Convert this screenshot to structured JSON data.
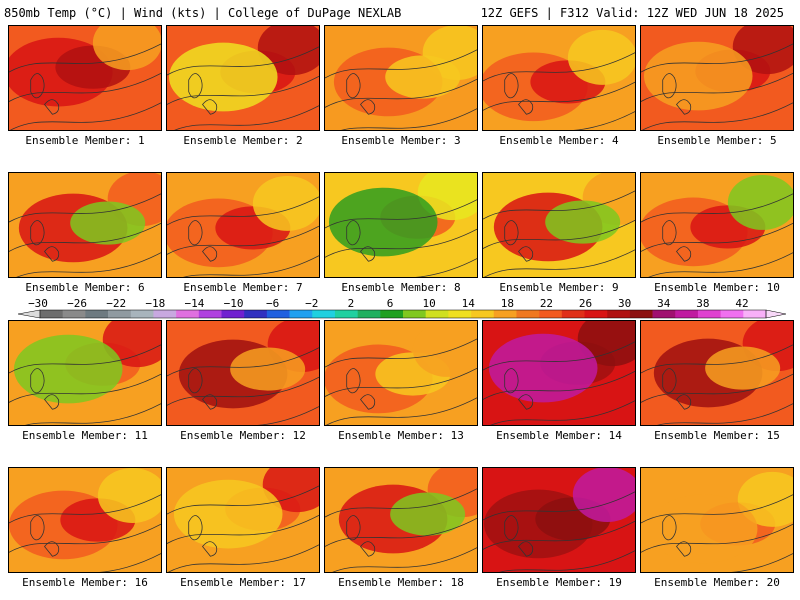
{
  "header": {
    "left": "850mb Temp (°C) | Wind (kts) | College of DuPage NEXLAB",
    "right": "12Z GEFS | F312 Valid: 12Z WED JUN 18 2025"
  },
  "members": [
    {
      "label": "Ensemble Member: 1",
      "base": "#f25a1f",
      "blobs": [
        {
          "c": "#d81414"
        },
        {
          "c": "#b01010"
        },
        {
          "c": "#f7a021"
        }
      ]
    },
    {
      "label": "Ensemble Member: 2",
      "base": "#f25a1f",
      "blobs": [
        {
          "c": "#d81414"
        },
        {
          "c": "#b01010"
        },
        {
          "c": "#f0e021"
        }
      ]
    },
    {
      "label": "Ensemble Member: 3",
      "base": "#f79a20",
      "blobs": [
        {
          "c": "#f7c820"
        },
        {
          "c": "#f25a1f"
        },
        {
          "c": "#f7c820"
        }
      ]
    },
    {
      "label": "Ensemble Member: 4",
      "base": "#f7a021",
      "blobs": [
        {
          "c": "#f25a1f"
        },
        {
          "c": "#d81414"
        },
        {
          "c": "#f7c820"
        }
      ]
    },
    {
      "label": "Ensemble Member: 5",
      "base": "#f25a1f",
      "blobs": [
        {
          "c": "#d81414"
        },
        {
          "c": "#b01010"
        },
        {
          "c": "#f7a021"
        }
      ]
    },
    {
      "label": "Ensemble Member: 6",
      "base": "#f7a021",
      "blobs": [
        {
          "c": "#f25a1f"
        },
        {
          "c": "#d81414"
        },
        {
          "c": "#7ec820"
        }
      ]
    },
    {
      "label": "Ensemble Member: 7",
      "base": "#f7a021",
      "blobs": [
        {
          "c": "#f25a1f"
        },
        {
          "c": "#d81414"
        },
        {
          "c": "#f7c820"
        }
      ]
    },
    {
      "label": "Ensemble Member: 8",
      "base": "#f7c820",
      "blobs": [
        {
          "c": "#f25a1f"
        },
        {
          "c": "#e8e820"
        },
        {
          "c": "#2f9e20"
        }
      ]
    },
    {
      "label": "Ensemble Member: 9",
      "base": "#f7c820",
      "blobs": [
        {
          "c": "#f7a021"
        },
        {
          "c": "#d81414"
        },
        {
          "c": "#7ec820"
        }
      ]
    },
    {
      "label": "Ensemble Member: 10",
      "base": "#f7a021",
      "blobs": [
        {
          "c": "#f25a1f"
        },
        {
          "c": "#d81414"
        },
        {
          "c": "#7ec820"
        }
      ]
    },
    {
      "label": "Ensemble Member: 11",
      "base": "#f7a021",
      "blobs": [
        {
          "c": "#f25a1f"
        },
        {
          "c": "#d81414"
        },
        {
          "c": "#7ec820"
        }
      ]
    },
    {
      "label": "Ensemble Member: 12",
      "base": "#f25a1f",
      "blobs": [
        {
          "c": "#d81414"
        },
        {
          "c": "#a01010"
        },
        {
          "c": "#f7a021"
        }
      ]
    },
    {
      "label": "Ensemble Member: 13",
      "base": "#f7a021",
      "blobs": [
        {
          "c": "#f25a1f"
        },
        {
          "c": "#f7c820"
        },
        {
          "c": "#f7a021"
        }
      ]
    },
    {
      "label": "Ensemble Member: 14",
      "base": "#d81414",
      "blobs": [
        {
          "c": "#a01010"
        },
        {
          "c": "#8c0f0f"
        },
        {
          "c": "#c01aa0"
        }
      ]
    },
    {
      "label": "Ensemble Member: 15",
      "base": "#f25a1f",
      "blobs": [
        {
          "c": "#d81414"
        },
        {
          "c": "#a01010"
        },
        {
          "c": "#f7a021"
        }
      ]
    },
    {
      "label": "Ensemble Member: 16",
      "base": "#f7a021",
      "blobs": [
        {
          "c": "#f25a1f"
        },
        {
          "c": "#d81414"
        },
        {
          "c": "#f7c820"
        }
      ]
    },
    {
      "label": "Ensemble Member: 17",
      "base": "#f7a021",
      "blobs": [
        {
          "c": "#f25a1f"
        },
        {
          "c": "#d81414"
        },
        {
          "c": "#f7c820"
        }
      ]
    },
    {
      "label": "Ensemble Member: 18",
      "base": "#f7a021",
      "blobs": [
        {
          "c": "#f25a1f"
        },
        {
          "c": "#d81414"
        },
        {
          "c": "#7ec820"
        }
      ]
    },
    {
      "label": "Ensemble Member: 19",
      "base": "#d81414",
      "blobs": [
        {
          "c": "#a01010"
        },
        {
          "c": "#8c0f0f"
        },
        {
          "c": "#c01aa0"
        }
      ]
    },
    {
      "label": "Ensemble Member: 20",
      "base": "#f7a021",
      "blobs": [
        {
          "c": "#f25a1f"
        },
        {
          "c": "#f7c820"
        },
        {
          "c": "#f7a021"
        }
      ]
    }
  ],
  "colorbar": {
    "tick_labels": [
      "-30",
      "-26",
      "-22",
      "-18",
      "-14",
      "-10",
      "-6",
      "-2",
      "2",
      "6",
      "10",
      "14",
      "18",
      "22",
      "26",
      "30",
      "34",
      "38",
      "42"
    ],
    "colors": [
      "#6e6e6e",
      "#8a8a8a",
      "#6e7a80",
      "#909aa0",
      "#a8b4bc",
      "#c8a8e0",
      "#e070e0",
      "#b040e0",
      "#7020d0",
      "#3030c0",
      "#2060e0",
      "#20a0f0",
      "#20d0e0",
      "#20d0a0",
      "#20b060",
      "#20a020",
      "#80c820",
      "#d0e020",
      "#f0e020",
      "#f7c820",
      "#f7a021",
      "#f07820",
      "#f25a1f",
      "#e03018",
      "#d81414",
      "#b01010",
      "#8c0f0f",
      "#a01070",
      "#c01aa0",
      "#e040d0",
      "#f070f0",
      "#f8b0f8"
    ]
  }
}
